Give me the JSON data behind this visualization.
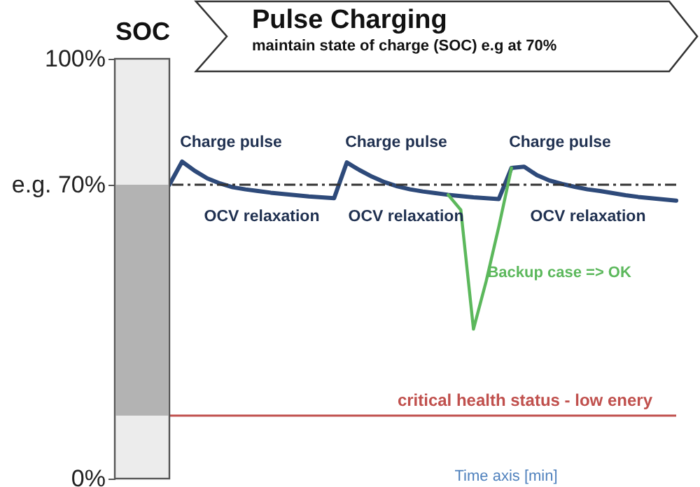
{
  "chart_data": {
    "type": "line",
    "title": "Pulse Charging",
    "subtitle": "maintain state of charge (SOC) e.g at 70%",
    "xlabel": "Time axis [min]",
    "ylabel": "SOC",
    "categories": [
      null,
      null,
      null,
      null,
      null,
      null,
      null,
      null,
      null,
      null,
      null,
      null,
      null,
      null,
      null,
      null,
      null,
      null,
      null,
      null,
      null,
      null,
      null,
      null,
      null,
      null,
      null,
      null,
      null,
      null,
      null,
      null,
      null,
      null,
      null,
      null,
      null,
      null,
      null,
      null,
      null
    ],
    "ylim": [
      0,
      100
    ],
    "yticks": [
      {
        "value": 0,
        "label": "0%"
      },
      {
        "value": 70,
        "label": "e.g. 70%"
      },
      {
        "value": 100,
        "label": "100%"
      }
    ],
    "tick_labels": "y",
    "grid": false,
    "series": [
      {
        "color": "#2e4a7a",
        "values": [
          70,
          75.5,
          73.3,
          71.5,
          70.3,
          69.4,
          68.9,
          68.5,
          68.1,
          67.8,
          67.5,
          67.2,
          67,
          66.8,
          75.3,
          73.5,
          71.9,
          70.6,
          69.6,
          68.9,
          68.4,
          68,
          67.6,
          67.3,
          67,
          66.8,
          66.6,
          74,
          74.3,
          72.3,
          71,
          70.2,
          69.5,
          68.9,
          68.5,
          68,
          67.5,
          67.1,
          66.8,
          66.5,
          66.2
        ]
      },
      {
        "name": "Backup case => OK",
        "color": "#5cb85c",
        "values": [
          null,
          null,
          null,
          null,
          null,
          null,
          null,
          null,
          null,
          null,
          null,
          null,
          null,
          null,
          null,
          null,
          null,
          null,
          null,
          null,
          null,
          null,
          67.6,
          64,
          35.6,
          47,
          60,
          74,
          null,
          null,
          null,
          null,
          null,
          null,
          null,
          null,
          null,
          null,
          null,
          null,
          null
        ]
      }
    ],
    "ref_lines": [
      {
        "axis": "y",
        "value": 70,
        "line_style": "dashed",
        "color": "#333333"
      },
      {
        "axis": "y",
        "value": 15,
        "label": "critical health status - low enery",
        "color": "#c0504d"
      }
    ],
    "annotations": [
      "Charge pulse",
      "Charge pulse",
      "Charge pulse",
      "OCV relaxation",
      "OCV relaxation",
      "OCV relaxation"
    ]
  }
}
